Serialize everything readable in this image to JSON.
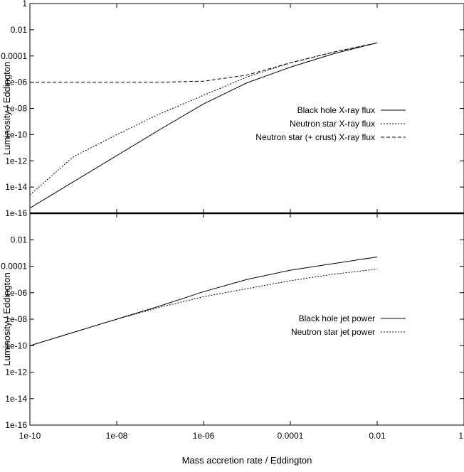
{
  "figure": {
    "xlabel": "Mass accretion rate / Eddington",
    "x_ticks": [
      "1e-10",
      "1e-08",
      "1e-06",
      "0.0001",
      "0.01",
      "1"
    ]
  },
  "chart_data": [
    {
      "type": "line",
      "xscale": "log",
      "yscale": "log",
      "xlim": [
        1e-10,
        1
      ],
      "ylim": [
        1e-16,
        1
      ],
      "ylabel": "Luminosity / Eddington",
      "y_ticks": [
        "1",
        "0.01",
        "0.0001",
        "1e-06",
        "1e-08",
        "1e-10",
        "1e-12",
        "1e-14",
        "1e-16"
      ],
      "legend_position": "right-middle",
      "series": [
        {
          "name": "Black hole X-ray flux",
          "dash": "solid",
          "x": [
            1e-10,
            1e-09,
            1e-08,
            1e-07,
            1e-06,
            1e-05,
            0.0001,
            0.001,
            0.01
          ],
          "y": [
            2.5e-16,
            2.5e-14,
            2.5e-12,
            2.5e-10,
            2.2e-08,
            9e-07,
            1.4e-05,
            0.00015,
            0.001
          ]
        },
        {
          "name": "Neutron star X-ray flux",
          "dash": "dotted",
          "x": [
            1e-10,
            1e-09,
            1e-08,
            1e-07,
            1e-06,
            1e-05,
            0.0001,
            0.001,
            0.01
          ],
          "y": [
            2.5e-15,
            2e-12,
            1e-10,
            4e-09,
            1e-07,
            2.5e-06,
            3e-05,
            0.0002,
            0.001
          ]
        },
        {
          "name": "Neutron star (+ crust) X-ray flux",
          "dash": "dashed",
          "x": [
            1e-10,
            1e-09,
            1e-08,
            1e-07,
            1e-06,
            3e-06,
            1e-05,
            0.0001,
            0.001,
            0.01
          ],
          "y": [
            1e-06,
            1e-06,
            1e-06,
            1e-06,
            1.2e-06,
            2e-06,
            3.5e-06,
            3e-05,
            0.0002,
            0.001
          ]
        }
      ]
    },
    {
      "type": "line",
      "xscale": "log",
      "yscale": "log",
      "xlim": [
        1e-10,
        1
      ],
      "ylim": [
        1e-16,
        1
      ],
      "ylabel": "Luminosity / Eddington",
      "y_ticks": [
        "0.01",
        "0.0001",
        "1e-06",
        "1e-08",
        "1e-10",
        "1e-12",
        "1e-14",
        "1e-16"
      ],
      "legend_position": "right-middle",
      "series": [
        {
          "name": "Black hole jet power",
          "dash": "solid",
          "x": [
            1e-10,
            1e-09,
            1e-08,
            1e-07,
            1e-06,
            1e-05,
            0.0001,
            0.001,
            0.01
          ],
          "y": [
            1e-10,
            1e-09,
            1e-08,
            1e-07,
            1.2e-06,
            1e-05,
            5e-05,
            0.00016,
            0.0005
          ]
        },
        {
          "name": "Neutron star jet power",
          "dash": "dotted",
          "x": [
            1e-10,
            1e-09,
            1e-08,
            1e-07,
            1e-06,
            1e-05,
            0.0001,
            0.001,
            0.01
          ],
          "y": [
            1e-10,
            1e-09,
            1e-08,
            8e-08,
            5e-07,
            2e-06,
            8e-06,
            2.5e-05,
            6e-05
          ]
        }
      ]
    }
  ]
}
